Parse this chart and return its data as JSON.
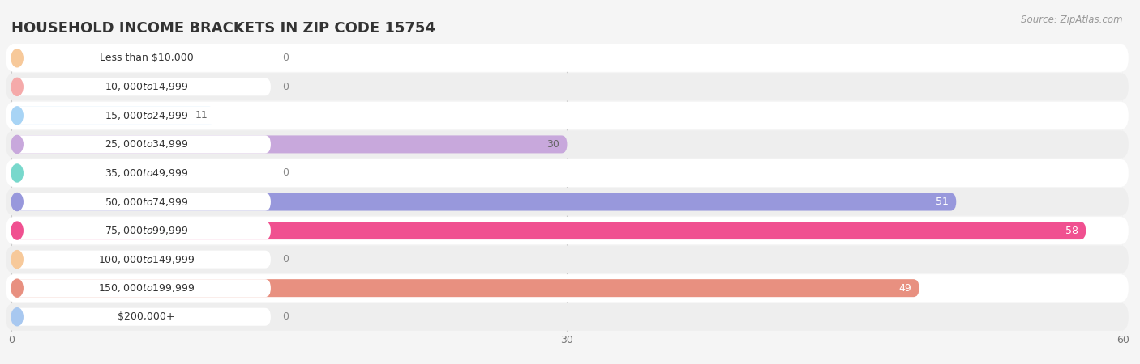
{
  "title": "HOUSEHOLD INCOME BRACKETS IN ZIP CODE 15754",
  "source": "Source: ZipAtlas.com",
  "categories": [
    "Less than $10,000",
    "$10,000 to $14,999",
    "$15,000 to $24,999",
    "$25,000 to $34,999",
    "$35,000 to $49,999",
    "$50,000 to $74,999",
    "$75,000 to $99,999",
    "$100,000 to $149,999",
    "$150,000 to $199,999",
    "$200,000+"
  ],
  "values": [
    0,
    0,
    11,
    30,
    0,
    51,
    58,
    0,
    49,
    0
  ],
  "bar_colors": [
    "#F7C99A",
    "#F5AAAA",
    "#A8D4F5",
    "#C8A8DC",
    "#78D8CC",
    "#9898DC",
    "#F05090",
    "#F7C99A",
    "#E89080",
    "#A8C8F0"
  ],
  "value_text_colors": [
    "#888888",
    "#888888",
    "#666666",
    "#666666",
    "#888888",
    "#ffffff",
    "#ffffff",
    "#888888",
    "#ffffff",
    "#888888"
  ],
  "xlim": [
    0,
    60
  ],
  "xticks": [
    0,
    30,
    60
  ],
  "background_color": "#f5f5f5",
  "title_fontsize": 13,
  "bar_height": 0.62,
  "label_fontsize": 9,
  "value_fontsize": 9
}
